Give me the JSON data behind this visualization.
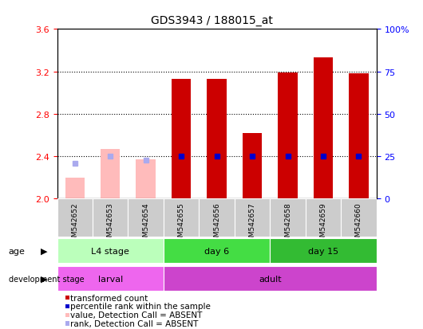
{
  "title": "GDS3943 / 188015_at",
  "samples": [
    "GSM542652",
    "GSM542653",
    "GSM542654",
    "GSM542655",
    "GSM542656",
    "GSM542657",
    "GSM542658",
    "GSM542659",
    "GSM542660"
  ],
  "transformed_count": [
    null,
    null,
    null,
    3.13,
    3.13,
    2.62,
    3.19,
    3.33,
    3.18
  ],
  "absent_value": [
    2.2,
    2.47,
    2.37,
    null,
    null,
    null,
    null,
    null,
    null
  ],
  "percentile_rank": [
    null,
    null,
    null,
    25,
    25,
    25,
    25,
    25,
    25
  ],
  "absent_rank_val": [
    2.33,
    2.4,
    2.36,
    null,
    null,
    null,
    null,
    null,
    null
  ],
  "ylim_left": [
    2.0,
    3.6
  ],
  "ylim_right": [
    0,
    100
  ],
  "yticks_left": [
    2.0,
    2.4,
    2.8,
    3.2,
    3.6
  ],
  "yticks_right": [
    0,
    25,
    50,
    75,
    100
  ],
  "ytick_labels_right": [
    "0",
    "25",
    "50",
    "75",
    "100%"
  ],
  "age_groups": [
    {
      "label": "L4 stage",
      "start": 0,
      "end": 3,
      "color": "#bbffbb"
    },
    {
      "label": "day 6",
      "start": 3,
      "end": 6,
      "color": "#44dd44"
    },
    {
      "label": "day 15",
      "start": 6,
      "end": 9,
      "color": "#33bb33"
    }
  ],
  "dev_groups": [
    {
      "label": "larval",
      "start": 0,
      "end": 3,
      "color": "#ee66ee"
    },
    {
      "label": "adult",
      "start": 3,
      "end": 9,
      "color": "#cc44cc"
    }
  ],
  "bar_color_present": "#cc0000",
  "bar_color_absent": "#ffbbbb",
  "rank_color_present": "#0000cc",
  "rank_color_absent": "#aaaaee",
  "bar_width": 0.55,
  "rank_marker_size": 4,
  "background_color": "#ffffff",
  "sample_bg_color": "#cccccc",
  "legend_items": [
    {
      "label": "transformed count",
      "color": "#cc0000"
    },
    {
      "label": "percentile rank within the sample",
      "color": "#0000cc"
    },
    {
      "label": "value, Detection Call = ABSENT",
      "color": "#ffbbbb"
    },
    {
      "label": "rank, Detection Call = ABSENT",
      "color": "#aaaaee"
    }
  ]
}
